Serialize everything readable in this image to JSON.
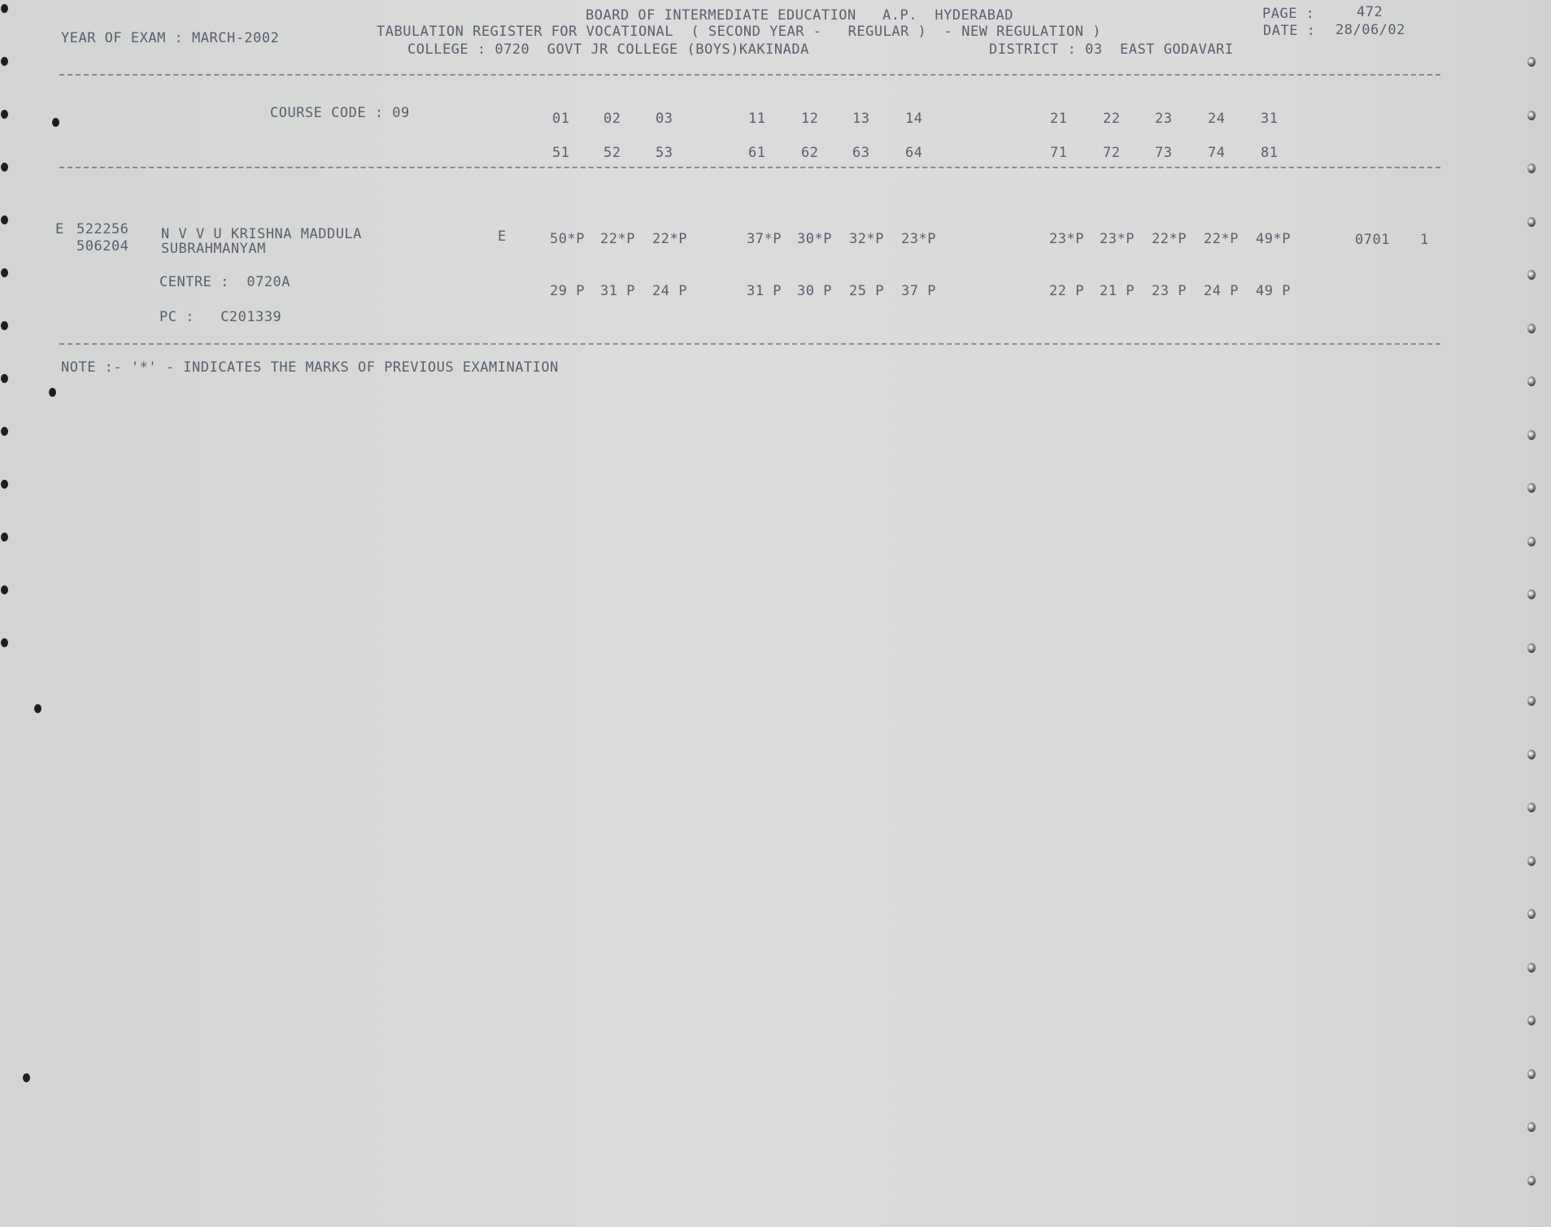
{
  "header": {
    "board": "BOARD OF INTERMEDIATE EDUCATION   A.P.  HYDERABAD",
    "page_label": "PAGE :",
    "page_number": "472",
    "year_of_exam": "YEAR OF EXAM : MARCH-2002",
    "register_title": "TABULATION REGISTER FOR VOCATIONAL  ( SECOND YEAR -   REGULAR )  - NEW REGULATION )",
    "date_label": "DATE :",
    "date": "28/06/02",
    "college": "COLLEGE : 0720  GOVT JR COLLEGE (BOYS)KAKINADA",
    "district": "DISTRICT : 03  EAST GODAVARI"
  },
  "course_code": "COURSE CODE : 09",
  "subject_codes": {
    "row1": [
      "01",
      "02",
      "03",
      "11",
      "12",
      "13",
      "14",
      "21",
      "22",
      "23",
      "24",
      "31"
    ],
    "row2": [
      "51",
      "52",
      "53",
      "61",
      "62",
      "63",
      "64",
      "71",
      "72",
      "73",
      "74",
      "81"
    ]
  },
  "student": {
    "prefix": "E",
    "hall_ticket": "522256",
    "number2": "506204",
    "name_line1": "N V V U KRISHNA MADDULA",
    "name_line2": "SUBRAHMANYAM",
    "medium": "E",
    "marks_row1": [
      "50*P",
      "22*P",
      "22*P",
      "37*P",
      "30*P",
      "32*P",
      "23*P",
      "23*P",
      "23*P",
      "22*P",
      "22*P",
      "49*P"
    ],
    "marks_row2": [
      "29 P",
      "31 P",
      "24 P",
      "31 P",
      "30 P",
      "25 P",
      "37 P",
      "22 P",
      "21 P",
      "23 P",
      "24 P",
      "49 P"
    ],
    "code": "0701",
    "count": "1",
    "centre": "CENTRE :  0720A",
    "pc": "PC :   C201339"
  },
  "note": "NOTE :- '*' - INDICATES THE MARKS OF PREVIOUS EXAMINATION"
}
